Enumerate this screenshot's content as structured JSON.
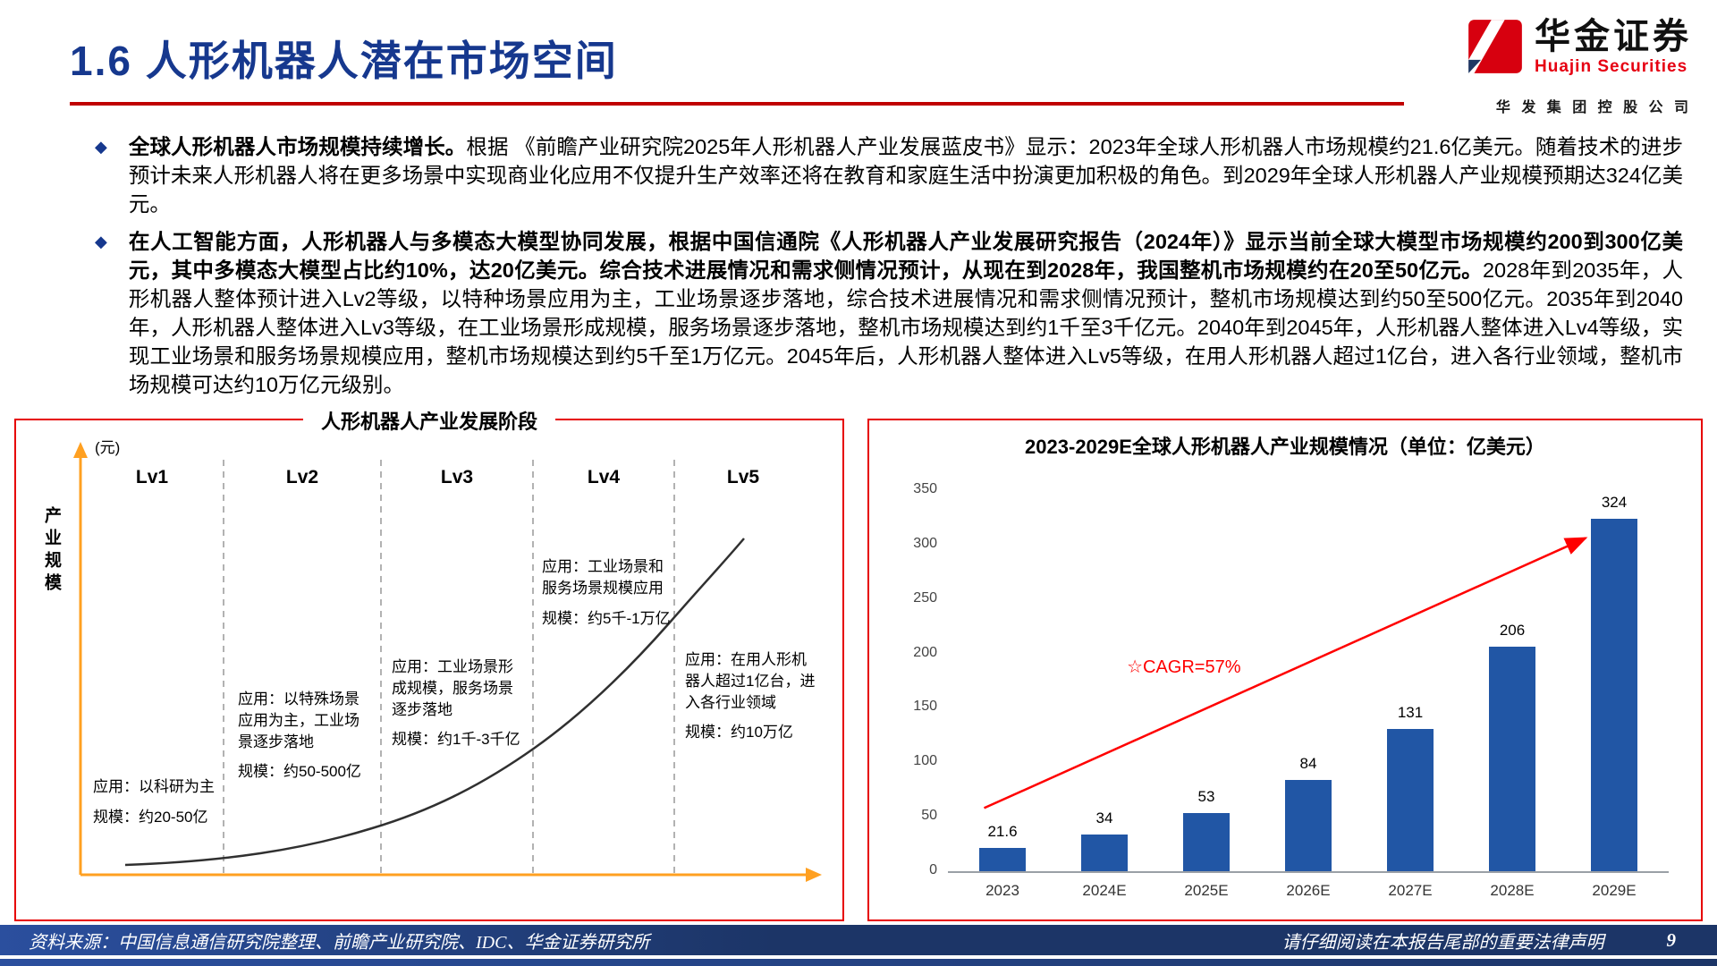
{
  "header": {
    "title": "1.6 人形机器人潜在市场空间",
    "logo": {
      "cn": "华金证券",
      "en": "Huajin Securities",
      "sub": "华 发 集 团 控 股 公 司"
    }
  },
  "icons": {
    "bullet": "◆"
  },
  "bullets": [
    {
      "bold": "全球人形机器人市场规模持续增长。",
      "rest": "根据 《前瞻产业研究院2025年人形机器人产业发展蓝皮书》显示：2023年全球人形机器人市场规模约21.6亿美元。随着技术的进步预计未来人形机器人将在更多场景中实现商业化应用不仅提升生产效率还将在教育和家庭生活中扮演更加积极的角色。到2029年全球人形机器人产业规模预期达324亿美元。"
    },
    {
      "bold": "在人工智能方面，人形机器人与多模态大模型协同发展，根据中国信通院《人形机器人产业发展研究报告（2024年）》显示当前全球大模型市场规模约200到300亿美元，其中多模态大模型占比约10%，达20亿美元。综合技术进展情况和需求侧情况预计，从现在到2028年，我国整机市场规模约在20至50亿元。",
      "rest": "2028年到2035年，人形机器人整体预计进入Lv2等级，以特种场景应用为主，工业场景逐步落地，综合技术进展情况和需求侧情况预计，整机市场规模达到约50至500亿元。2035年到2040年，人形机器人整体进入Lv3等级，在工业场景形成规模，服务场景逐步落地，整机市场规模达到约1千至3千亿元。2040年到2045年，人形机器人整体进入Lv4等级，实现工业场景和服务场景规模应用，整机市场规模达到约5千至1万亿元。2045年后，人形机器人整体进入Lv5等级，在用人形机器人超过1亿台，进入各行业领域，整机市场规模可达约10万亿元级别。"
    }
  ],
  "stage_chart": {
    "title": "人形机器人产业发展阶段",
    "y_axis_label": "产业规模",
    "y_unit": "(元)",
    "levels": [
      "Lv1",
      "Lv2",
      "Lv3",
      "Lv4",
      "Lv5"
    ],
    "annotations": [
      {
        "app": "应用：以科研为主",
        "scale": "规模：约20-50亿"
      },
      {
        "app": "应用：以特殊场景应用为主，工业场景逐步落地",
        "scale": "规模：约50-500亿"
      },
      {
        "app": "应用：工业场景形成规模，服务场景逐步落地",
        "scale": "规模：约1千-3千亿"
      },
      {
        "app": "应用：工业场景和服务场景规模应用",
        "scale": "规模：约5千-1万亿"
      },
      {
        "app": "应用：在用人形机器人超过1亿台，进入各行业领域",
        "scale": "规模：约10万亿"
      }
    ]
  },
  "chart_data": {
    "type": "bar",
    "title": "2023-2029E全球人形机器人产业规模情况（单位：亿美元）",
    "categories": [
      "2023",
      "2024E",
      "2025E",
      "2026E",
      "2027E",
      "2028E",
      "2029E"
    ],
    "values": [
      21.6,
      34,
      53,
      84,
      131,
      206,
      324
    ],
    "ylim": [
      0,
      350
    ],
    "yticks": [
      0,
      50,
      100,
      150,
      200,
      250,
      300,
      350
    ],
    "annotation": "☆CAGR=57%",
    "bar_color": "#2156A5",
    "accent_color": "#FF0000",
    "grid": false,
    "legend": false
  },
  "footer": {
    "source": "资料来源：中国信息通信研究院整理、前瞻产业研究院、IDC、华金证券研究所",
    "notice": "请仔细阅读在本报告尾部的重要法律声明",
    "page": "9"
  }
}
